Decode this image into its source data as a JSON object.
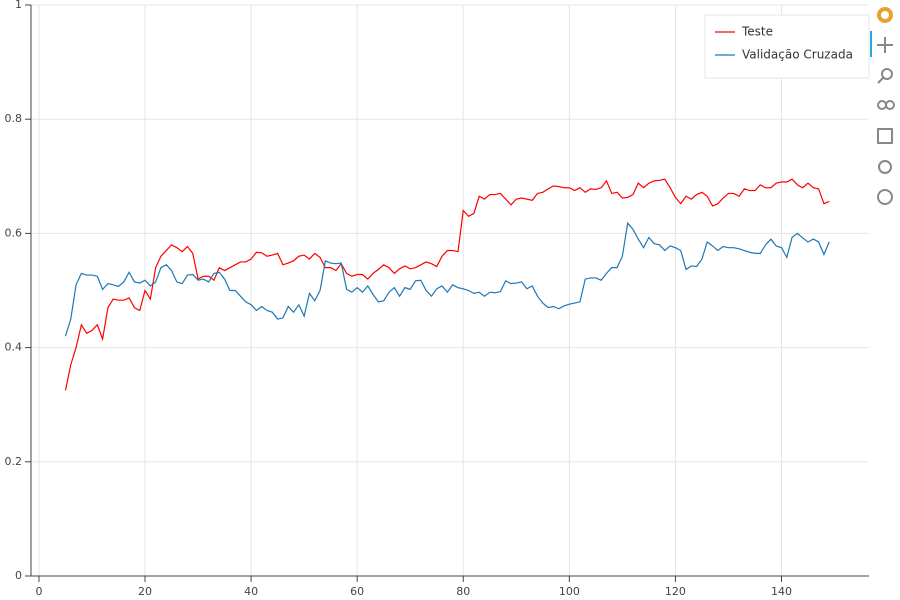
{
  "chart_data": {
    "type": "line",
    "x": [
      5,
      6,
      7,
      8,
      9,
      10,
      11,
      12,
      13,
      14,
      15,
      16,
      17,
      18,
      19,
      20,
      21,
      22,
      23,
      24,
      25,
      26,
      27,
      28,
      29,
      30,
      31,
      32,
      33,
      34,
      35,
      36,
      37,
      38,
      39,
      40,
      41,
      42,
      43,
      44,
      45,
      46,
      47,
      48,
      49,
      50,
      51,
      52,
      53,
      54,
      55,
      56,
      57,
      58,
      59,
      60,
      61,
      62,
      63,
      64,
      65,
      66,
      67,
      68,
      69,
      70,
      71,
      72,
      73,
      74,
      75,
      76,
      77,
      78,
      79,
      80,
      81,
      82,
      83,
      84,
      85,
      86,
      87,
      88,
      89,
      90,
      91,
      92,
      93,
      94,
      95,
      96,
      97,
      98,
      99,
      100,
      101,
      102,
      103,
      104,
      105,
      106,
      107,
      108,
      109,
      110,
      111,
      112,
      113,
      114,
      115,
      116,
      117,
      118,
      119,
      120,
      121,
      122,
      123,
      124,
      125,
      126,
      127,
      128,
      129,
      130,
      131,
      132,
      133,
      134,
      135,
      136,
      137,
      138,
      139,
      140,
      141,
      142,
      143,
      144,
      145,
      146,
      147,
      148,
      149
    ],
    "series": [
      {
        "name": "Teste",
        "color": "#ff0000",
        "values": [
          0.325,
          0.37,
          0.4,
          0.44,
          0.425,
          0.43,
          0.44,
          0.415,
          0.47,
          0.485,
          0.483,
          0.483,
          0.487,
          0.47,
          0.465,
          0.5,
          0.485,
          0.54,
          0.56,
          0.57,
          0.58,
          0.575,
          0.568,
          0.577,
          0.565,
          0.52,
          0.525,
          0.525,
          0.518,
          0.54,
          0.535,
          0.54,
          0.545,
          0.55,
          0.55,
          0.555,
          0.567,
          0.566,
          0.56,
          0.562,
          0.565,
          0.545,
          0.548,
          0.552,
          0.56,
          0.562,
          0.555,
          0.565,
          0.558,
          0.54,
          0.54,
          0.535,
          0.547,
          0.53,
          0.525,
          0.528,
          0.528,
          0.52,
          0.53,
          0.537,
          0.545,
          0.54,
          0.53,
          0.538,
          0.543,
          0.538,
          0.54,
          0.545,
          0.55,
          0.547,
          0.542,
          0.56,
          0.57,
          0.57,
          0.568,
          0.64,
          0.63,
          0.635,
          0.665,
          0.66,
          0.668,
          0.668,
          0.67,
          0.66,
          0.65,
          0.66,
          0.662,
          0.66,
          0.658,
          0.67,
          0.672,
          0.678,
          0.683,
          0.682,
          0.68,
          0.68,
          0.675,
          0.68,
          0.672,
          0.678,
          0.677,
          0.68,
          0.692,
          0.67,
          0.672,
          0.662,
          0.663,
          0.668,
          0.688,
          0.68,
          0.688,
          0.692,
          0.693,
          0.695,
          0.68,
          0.663,
          0.652,
          0.665,
          0.66,
          0.668,
          0.672,
          0.665,
          0.648,
          0.652,
          0.662,
          0.67,
          0.67,
          0.665,
          0.678,
          0.675,
          0.675,
          0.685,
          0.68,
          0.68,
          0.688,
          0.69,
          0.69,
          0.695,
          0.685,
          0.68,
          0.688,
          0.68,
          0.678,
          0.652,
          0.656
        ]
      },
      {
        "name": "Validação Cruzada",
        "color": "#1f77b4",
        "values": [
          0.42,
          0.45,
          0.51,
          0.53,
          0.527,
          0.527,
          0.525,
          0.502,
          0.512,
          0.51,
          0.507,
          0.515,
          0.532,
          0.515,
          0.513,
          0.518,
          0.508,
          0.515,
          0.54,
          0.545,
          0.535,
          0.515,
          0.512,
          0.527,
          0.528,
          0.518,
          0.52,
          0.515,
          0.53,
          0.532,
          0.52,
          0.5,
          0.5,
          0.49,
          0.48,
          0.475,
          0.465,
          0.472,
          0.465,
          0.462,
          0.45,
          0.452,
          0.472,
          0.462,
          0.475,
          0.455,
          0.495,
          0.482,
          0.5,
          0.552,
          0.548,
          0.547,
          0.548,
          0.502,
          0.497,
          0.505,
          0.497,
          0.508,
          0.493,
          0.48,
          0.482,
          0.497,
          0.505,
          0.49,
          0.505,
          0.502,
          0.517,
          0.518,
          0.5,
          0.49,
          0.503,
          0.508,
          0.497,
          0.51,
          0.505,
          0.503,
          0.5,
          0.495,
          0.497,
          0.49,
          0.497,
          0.496,
          0.498,
          0.517,
          0.512,
          0.513,
          0.515,
          0.503,
          0.508,
          0.49,
          0.478,
          0.47,
          0.472,
          0.468,
          0.473,
          0.476,
          0.478,
          0.48,
          0.52,
          0.522,
          0.522,
          0.518,
          0.53,
          0.54,
          0.54,
          0.56,
          0.618,
          0.607,
          0.59,
          0.575,
          0.593,
          0.582,
          0.58,
          0.57,
          0.578,
          0.575,
          0.57,
          0.537,
          0.543,
          0.542,
          0.555,
          0.585,
          0.578,
          0.57,
          0.577,
          0.575,
          0.575,
          0.573,
          0.57,
          0.567,
          0.565,
          0.565,
          0.58,
          0.59,
          0.578,
          0.575,
          0.558,
          0.593,
          0.6,
          0.592,
          0.585,
          0.59,
          0.585,
          0.563,
          0.585
        ]
      }
    ],
    "xlim": [
      -1.5,
      156.5
    ],
    "ylim": [
      0,
      1
    ],
    "xticks": [
      0,
      20,
      40,
      60,
      80,
      100,
      120,
      140
    ],
    "yticks": [
      0,
      0.2,
      0.4,
      0.6,
      0.8,
      1
    ],
    "grid": true,
    "legend": "top-right"
  }
}
